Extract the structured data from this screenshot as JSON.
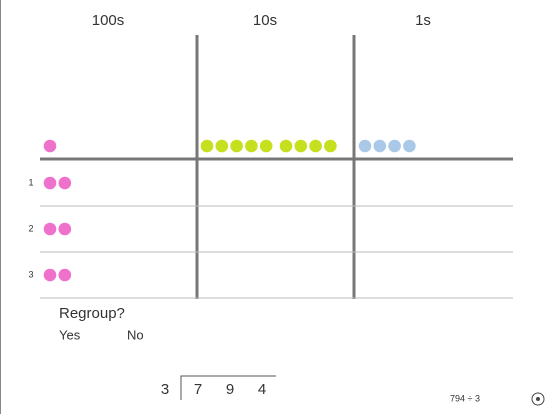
{
  "columns": [
    {
      "label": "100s",
      "count": 1,
      "color": "#ee72cc"
    },
    {
      "label": "10s",
      "count": 9,
      "color": "#c6df1f"
    },
    {
      "label": "1s",
      "count": 4,
      "color": "#aac9e9"
    }
  ],
  "rows": [
    {
      "label": "1",
      "count": 2
    },
    {
      "label": "2",
      "count": 2
    },
    {
      "label": "3",
      "count": 2
    }
  ],
  "regroup": {
    "prompt": "Regroup?",
    "options": [
      "Yes",
      "No"
    ]
  },
  "division": {
    "divisor": "3",
    "dividend": [
      "7",
      "9",
      "4"
    ]
  },
  "caption": "794 ÷ 3"
}
